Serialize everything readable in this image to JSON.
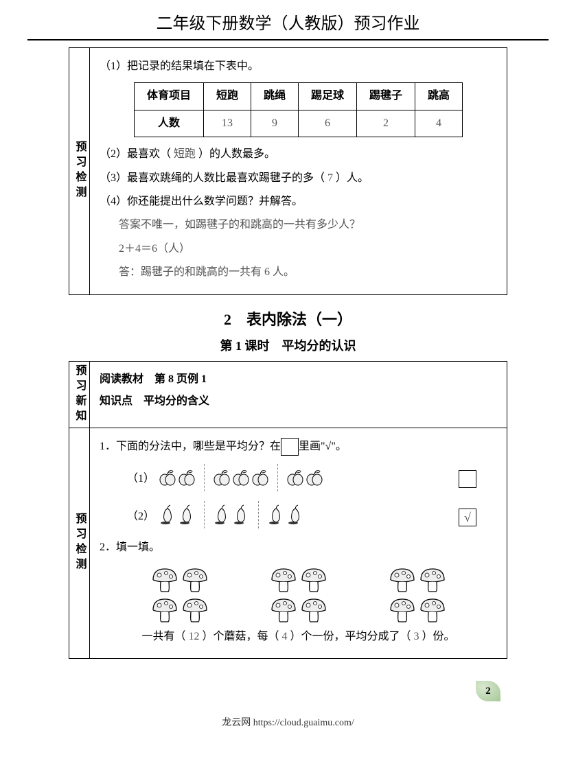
{
  "header": {
    "title": "二年级下册数学（人教版）预习作业"
  },
  "section1": {
    "sideLabel": "预习检测",
    "q1": "（1）把记录的结果填在下表中。",
    "table": {
      "head": [
        "体育项目",
        "短跑",
        "跳绳",
        "踢足球",
        "踢毽子",
        "跳高"
      ],
      "rowLabel": "人数",
      "values": [
        "13",
        "9",
        "6",
        "2",
        "4"
      ]
    },
    "q2_pre": "（2）最喜欢（",
    "q2_ans": "短跑",
    "q2_post": "）的人数最多。",
    "q3_pre": "（3）最喜欢跳绳的人数比最喜欢踢毽子的多（",
    "q3_ans": "7",
    "q3_post": "）人。",
    "q4": "（4）你还能提出什么数学问题？并解答。",
    "q4_ans1": "答案不唯一，如踢毽子的和跳高的一共有多少人？",
    "q4_ans2": "2＋4＝6（人）",
    "q4_ans3": "答：踢毽子的和跳高的一共有 6 人。"
  },
  "chapter": {
    "title": "2　表内除法（一）",
    "subtitle": "第 1 课时　平均分的认识"
  },
  "section2a": {
    "sideLabel": "预习新知",
    "line1": "阅读教材　第 8 页例 1",
    "line2": "知识点　平均分的含义"
  },
  "section2b": {
    "sideLabel": "预习检测",
    "q1_pre": "1．下面的分法中，哪些是平均分？在",
    "q1_post": "里画\"√\"。",
    "row1_label": "（1）",
    "row1_groups": [
      2,
      3,
      2
    ],
    "row1_check": "",
    "row2_label": "（2）",
    "row2_groups": [
      2,
      2,
      2
    ],
    "row2_check": "√",
    "q2": "2．填一填。",
    "mushrooms_per_group": 4,
    "mushroom_groups": 3,
    "fill_pre": "一共有（",
    "fill_a1": "12",
    "fill_mid1": "）个蘑菇，每（",
    "fill_a2": "4",
    "fill_mid2": "）个一份，平均分成了（",
    "fill_a3": "3",
    "fill_post": "）份。"
  },
  "footer": {
    "text": "龙云网 https://cloud.guaimu.com/",
    "pageNum": "2"
  },
  "style": {
    "colors": {
      "text": "#000000",
      "answer": "#555555",
      "bg": "#ffffff"
    },
    "fonts": {
      "body": 16,
      "header": 24,
      "chapter": 22,
      "subtitle": 18
    }
  }
}
